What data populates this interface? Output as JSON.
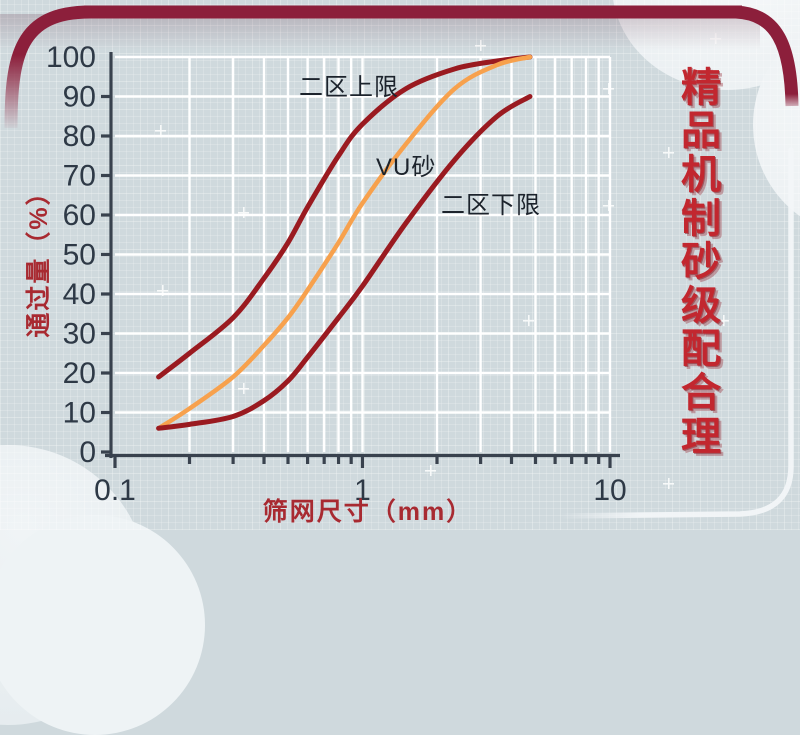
{
  "page": {
    "background": "#cfd9dd",
    "accent_bar_color": "#8c1f3b",
    "grid_color": "#ffffff",
    "axis_color": "#39424e",
    "tick_text_color": "#2e3946",
    "red_label_color": "#a82a31"
  },
  "side_title": {
    "text": "精品机制砂级配合理",
    "color": "#c2272f"
  },
  "chart_data": {
    "type": "line",
    "title": "",
    "xlabel": "筛网尺寸（mm）",
    "ylabel": "通过量（%）",
    "x_axis": {
      "scale": "log",
      "min": 0.1,
      "max": 10,
      "tick_values": [
        0.1,
        1,
        10
      ],
      "tick_labels": [
        "0.1",
        "1",
        "10"
      ],
      "minor_ticks": [
        0.2,
        0.3,
        0.4,
        0.5,
        0.6,
        0.7,
        0.8,
        0.9,
        2,
        3,
        4,
        5,
        6,
        7,
        8,
        9
      ]
    },
    "y_axis": {
      "min": 0,
      "max": 100,
      "tick_step": 10,
      "tick_labels": [
        "0",
        "10",
        "20",
        "30",
        "40",
        "50",
        "60",
        "70",
        "80",
        "90",
        "100"
      ]
    },
    "grid": "on",
    "legend_position": "inline-annotations",
    "series": [
      {
        "name": "二区上限",
        "color": "#9a1a20",
        "x": [
          0.15,
          0.2,
          0.3,
          0.4,
          0.5,
          0.6,
          0.8,
          1.0,
          1.5,
          2.36,
          3.5,
          4.75
        ],
        "y": [
          19,
          25,
          34,
          44,
          53,
          62,
          75,
          83,
          92,
          97,
          99,
          100
        ]
      },
      {
        "name": "VU砂",
        "color": "#f7a14d",
        "x": [
          0.15,
          0.2,
          0.3,
          0.4,
          0.5,
          0.6,
          0.8,
          1.0,
          1.5,
          2.36,
          3.5,
          4.75
        ],
        "y": [
          6,
          11,
          19,
          27,
          34,
          41,
          53,
          63,
          78,
          92,
          98,
          100
        ]
      },
      {
        "name": "二区下限",
        "color": "#9a1a20",
        "x": [
          0.15,
          0.2,
          0.3,
          0.4,
          0.5,
          0.6,
          0.8,
          1.0,
          1.5,
          2.36,
          3.5,
          4.75
        ],
        "y": [
          6,
          7,
          9,
          13,
          18,
          24,
          34,
          42,
          58,
          74,
          85,
          90
        ]
      }
    ]
  }
}
